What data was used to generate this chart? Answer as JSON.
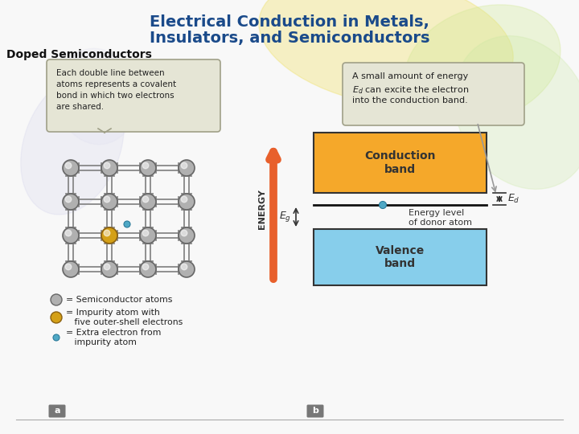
{
  "title_line1": "Electrical Conduction in Metals,",
  "title_line2": "Insulators, and Semiconductors",
  "title_color": "#1a4a8a",
  "subtitle": "Doped Semiconductors",
  "bg_color": "#f8f8f8",
  "callout_left_text": "Each double line between\natoms represents a covalent\nbond in which two electrons\nare shared.",
  "callout_right_text_1": "A small amount of energy",
  "callout_right_text_2": "$E_d$ can excite the electron",
  "callout_right_text_3": "into the conduction band.",
  "conduction_band_color": "#f5a82a",
  "valence_band_color": "#87ceeb",
  "energy_arrow_color": "#e8602c",
  "label_a": "a",
  "label_b": "b",
  "atom_color": "#b0b0b0",
  "impurity_color": "#d4a017",
  "electron_color": "#4fa8c5",
  "bond_color": "#888888",
  "callout_bg": "#e5e5d5",
  "callout_border": "#a0a088",
  "dec_colors": [
    "#f0e890",
    "#d8f0a0",
    "#c8d8f0",
    "#e8f5c0"
  ],
  "legend_sem_label": "= Semiconductor atoms",
  "legend_imp_label1": "= Impurity atom with",
  "legend_imp_label2": "   five outer-shell electrons",
  "legend_elec_label1": "= Extra electron from",
  "legend_elec_label2": "   impurity atom"
}
